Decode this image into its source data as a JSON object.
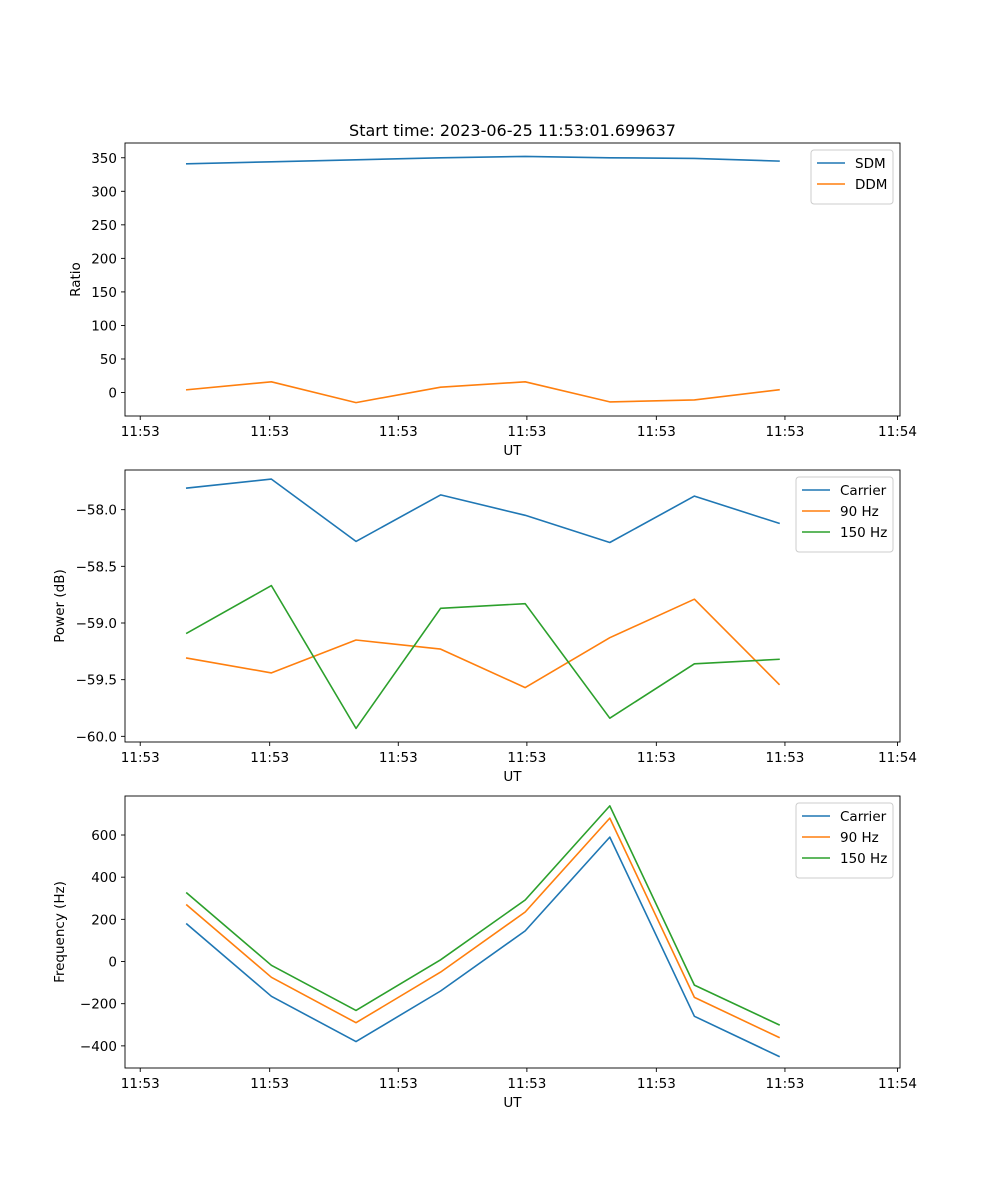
{
  "colors": {
    "blue": "#1f77b4",
    "orange": "#ff7f0e",
    "green": "#2ca02c",
    "axis": "#000000",
    "legend_border": "#cccccc"
  },
  "chart_data": [
    {
      "type": "line",
      "title": "Start time: 2023-06-25 11:53:01.699637",
      "xlabel": "UT",
      "ylabel": "Ratio",
      "x": [
        1,
        2,
        3,
        4,
        5,
        6,
        7,
        8
      ],
      "xlim": [
        0.27,
        9.43
      ],
      "x_ticks": [
        0.45,
        1.98,
        3.5,
        5.02,
        6.55,
        8.07,
        9.4
      ],
      "x_tick_labels": [
        "11:53",
        "11:53",
        "11:53",
        "11:53",
        "11:53",
        "11:53",
        "11:54"
      ],
      "ylim": [
        -35,
        372
      ],
      "y_ticks": [
        0,
        50,
        100,
        150,
        200,
        250,
        300,
        350
      ],
      "y_tick_labels": [
        "0",
        "50",
        "100",
        "150",
        "200",
        "250",
        "300",
        "350"
      ],
      "grid": false,
      "legend_position": "top-right",
      "series": [
        {
          "name": "SDM",
          "color": "#1f77b4",
          "values": [
            341,
            344,
            347,
            350,
            352,
            350,
            349,
            345
          ]
        },
        {
          "name": "DDM",
          "color": "#ff7f0e",
          "values": [
            4,
            16,
            -15,
            8,
            16,
            -14,
            -11,
            4
          ]
        }
      ]
    },
    {
      "type": "line",
      "xlabel": "UT",
      "ylabel": "Power (dB)",
      "x": [
        1,
        2,
        3,
        4,
        5,
        6,
        7,
        8
      ],
      "xlim": [
        0.27,
        9.43
      ],
      "x_ticks": [
        0.45,
        1.98,
        3.5,
        5.02,
        6.55,
        8.07,
        9.4
      ],
      "x_tick_labels": [
        "11:53",
        "11:53",
        "11:53",
        "11:53",
        "11:53",
        "11:53",
        "11:54"
      ],
      "ylim": [
        -60.05,
        -57.65
      ],
      "y_ticks": [
        -60.0,
        -59.5,
        -59.0,
        -58.5,
        -58.0
      ],
      "y_tick_labels": [
        "−60.0",
        "−59.5",
        "−59.0",
        "−58.5",
        "−58.0"
      ],
      "grid": false,
      "legend_position": "top-right",
      "series": [
        {
          "name": "Carrier",
          "color": "#1f77b4",
          "values": [
            -57.81,
            -57.73,
            -58.28,
            -57.87,
            -58.05,
            -58.29,
            -57.88,
            -58.12
          ]
        },
        {
          "name": "90 Hz",
          "color": "#ff7f0e",
          "values": [
            -59.31,
            -59.44,
            -59.15,
            -59.23,
            -59.57,
            -59.13,
            -58.79,
            -59.54
          ]
        },
        {
          "name": "150 Hz",
          "color": "#2ca02c",
          "values": [
            -59.09,
            -58.67,
            -59.93,
            -58.87,
            -58.83,
            -59.84,
            -59.36,
            -59.32
          ]
        }
      ]
    },
    {
      "type": "line",
      "xlabel": "UT",
      "ylabel": "Frequency (Hz)",
      "x": [
        1,
        2,
        3,
        4,
        5,
        6,
        7,
        8
      ],
      "xlim": [
        0.27,
        9.43
      ],
      "x_ticks": [
        0.45,
        1.98,
        3.5,
        5.02,
        6.55,
        8.07,
        9.4
      ],
      "x_tick_labels": [
        "11:53",
        "11:53",
        "11:53",
        "11:53",
        "11:53",
        "11:53",
        "11:54"
      ],
      "ylim": [
        -505,
        785
      ],
      "y_ticks": [
        -400,
        -200,
        0,
        200,
        400,
        600
      ],
      "y_tick_labels": [
        "−400",
        "−200",
        "0",
        "200",
        "400",
        "600"
      ],
      "grid": false,
      "legend_position": "top-right",
      "series": [
        {
          "name": "Carrier",
          "color": "#1f77b4",
          "values": [
            178,
            -165,
            -380,
            -140,
            145,
            590,
            -260,
            -450
          ]
        },
        {
          "name": "90 Hz",
          "color": "#ff7f0e",
          "values": [
            268,
            -75,
            -290,
            -50,
            235,
            680,
            -170,
            -360
          ]
        },
        {
          "name": "150 Hz",
          "color": "#2ca02c",
          "values": [
            325,
            -18,
            -232,
            8,
            292,
            738,
            -112,
            -300
          ]
        }
      ]
    }
  ]
}
